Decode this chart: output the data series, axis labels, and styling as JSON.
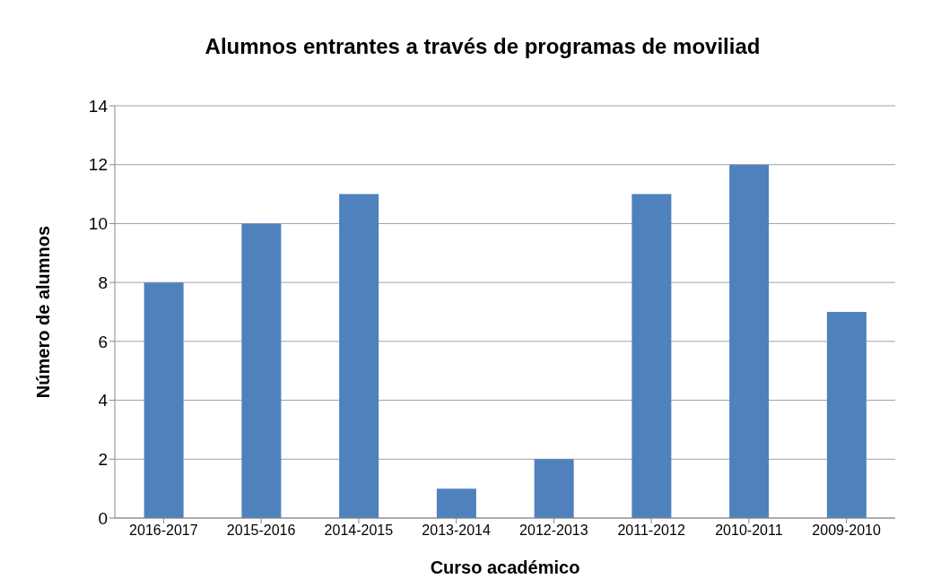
{
  "chart_data": {
    "type": "bar",
    "title": "Alumnos entrantes a través de programas de moviliad",
    "xlabel": "Curso académico",
    "ylabel": "Número de alumnos",
    "categories": [
      "2016-2017",
      "2015-2016",
      "2014-2015",
      "2013-2014",
      "2012-2013",
      "2011-2012",
      "2010-2011",
      "2009-2010"
    ],
    "values": [
      8,
      10,
      11,
      1,
      2,
      11,
      12,
      7
    ],
    "color": "#4f81bd",
    "ylim": [
      0,
      14
    ],
    "yticks": [
      0,
      2,
      4,
      6,
      8,
      10,
      12,
      14
    ],
    "grid": "y",
    "legend": false
  }
}
